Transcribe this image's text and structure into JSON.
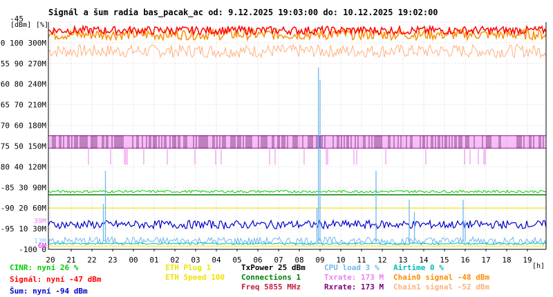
{
  "chart_data": {
    "type": "line",
    "title": "Signál a šum radia bas_pacak_ac od: 9.12.2025 19:03:00 do: 10.12.2025 19:02:00",
    "units_label": "[dBm]",
    "pct_label": "[%]",
    "xunit": "[h]",
    "x_start_hour": 20,
    "xticks": [
      "21",
      "22",
      "23",
      "00",
      "01",
      "02",
      "03",
      "04",
      "05",
      "06",
      "07",
      "08",
      "09",
      "10",
      "11",
      "12",
      "13",
      "14",
      "15",
      "16",
      "17",
      "18",
      "19"
    ],
    "ylim": [
      -100,
      -45
    ],
    "yticks": [
      {
        "dbm": "-45",
        "pct": "",
        "rate": ""
      },
      {
        "dbm": "-50",
        "pct": "100",
        "rate": "300M"
      },
      {
        "dbm": "-55",
        "pct": "90",
        "rate": "270M"
      },
      {
        "dbm": "-60",
        "pct": "80",
        "rate": "240M"
      },
      {
        "dbm": "-65",
        "pct": "70",
        "rate": "210M"
      },
      {
        "dbm": "-70",
        "pct": "60",
        "rate": "180M"
      },
      {
        "dbm": "-75",
        "pct": "50",
        "rate": "150M"
      },
      {
        "dbm": "-80",
        "pct": "40",
        "rate": "120M"
      },
      {
        "dbm": "-85",
        "pct": "30",
        "rate": "90M"
      },
      {
        "dbm": "-90",
        "pct": "20",
        "rate": "60M"
      },
      {
        "dbm": "-95",
        "pct": "10",
        "rate": "30M"
      },
      {
        "dbm": "-100",
        "pct": "0",
        "rate": ""
      }
    ],
    "side_labels": [
      {
        "text": "39M",
        "color": "#ee82ee",
        "dbm": -93
      },
      {
        "text": "13M",
        "color": "#87cefa",
        "dbm": -97.8
      },
      {
        "text": "6M",
        "color": "#ff00ff",
        "dbm": -99
      }
    ],
    "series": [
      {
        "name": "Signál",
        "color": "#ff0000",
        "level_dbm": -47,
        "noise": 1.0
      },
      {
        "name": "Chain0 signal",
        "color": "#ff8c00",
        "level_dbm": -48,
        "noise": 1.3
      },
      {
        "name": "Chain1 signal",
        "color": "#ffb080",
        "level_dbm": -52,
        "noise": 1.6
      },
      {
        "name": "Rxrate",
        "color": "#800080",
        "level_dbm": -73,
        "noise": 1.5
      },
      {
        "name": "Txrate",
        "color": "#ee82ee",
        "level_dbm": -73,
        "noise": 1.5
      },
      {
        "name": "ETH Speed",
        "color": "#f0e000",
        "level_dbm": -90
      },
      {
        "name": "Connections",
        "color": "#008000",
        "level_dbm": -86.8
      },
      {
        "name": "CINR",
        "color": "#00cc00",
        "level_dbm": -86
      },
      {
        "name": "Šum",
        "color": "#0000cc",
        "level_dbm": -94,
        "noise": 1.0
      },
      {
        "name": "CPU load",
        "color": "#6fb7ef",
        "level_dbm": -98,
        "noise": 1.0
      },
      {
        "name": "Airtime",
        "color": "#00bbbb",
        "level_dbm": -98.6
      },
      {
        "name": "ETH Plug",
        "color": "#e8e800",
        "level_dbm": -99.2
      }
    ],
    "spikes": [
      {
        "hour": 21.65,
        "dbm": -81
      },
      {
        "hour": 21.55,
        "dbm": -89
      },
      {
        "hour": 7.92,
        "dbm": -56
      },
      {
        "hour": 8.0,
        "dbm": -59
      },
      {
        "hour": 7.85,
        "dbm": -90
      },
      {
        "hour": 12.55,
        "dbm": -91
      },
      {
        "hour": 12.3,
        "dbm": -88
      },
      {
        "hour": 14.9,
        "dbm": -88
      },
      {
        "hour": 15.0,
        "dbm": -93
      },
      {
        "hour": 10.7,
        "dbm": -81
      }
    ],
    "grid": true
  },
  "legend": [
    [
      {
        "text": "CINR: nyní 26 %",
        "color": "#00cc00"
      },
      {
        "text": "Signál: nyní -47 dBm",
        "color": "#ff0000"
      },
      {
        "text": "Šum: nyní -94 dBm",
        "color": "#0000cc"
      }
    ],
    [
      {
        "text": "ETH Plug 1",
        "color": "#e8e800"
      },
      {
        "text": "ETH Speed 100",
        "color": "#f0e000"
      }
    ],
    [
      {
        "text": "TxPower 25 dBm",
        "color": "#000000"
      },
      {
        "text": "Connections 1",
        "color": "#008000"
      },
      {
        "text": "Freq 5855 MHz",
        "color": "#c02040"
      }
    ],
    [
      {
        "text": "CPU load 3 %",
        "color": "#6fb7ef"
      },
      {
        "text": "Txrate: 173 M",
        "color": "#ee82ee"
      },
      {
        "text": "Rxrate: 173 M",
        "color": "#800080"
      }
    ],
    [
      {
        "text": "Airtime 0 %",
        "color": "#00bbbb"
      },
      {
        "text": "Chain0 signal -48 dBm",
        "color": "#ff8c00"
      },
      {
        "text": "Chain1 signal -52 dBm",
        "color": "#ffb080"
      }
    ]
  ]
}
